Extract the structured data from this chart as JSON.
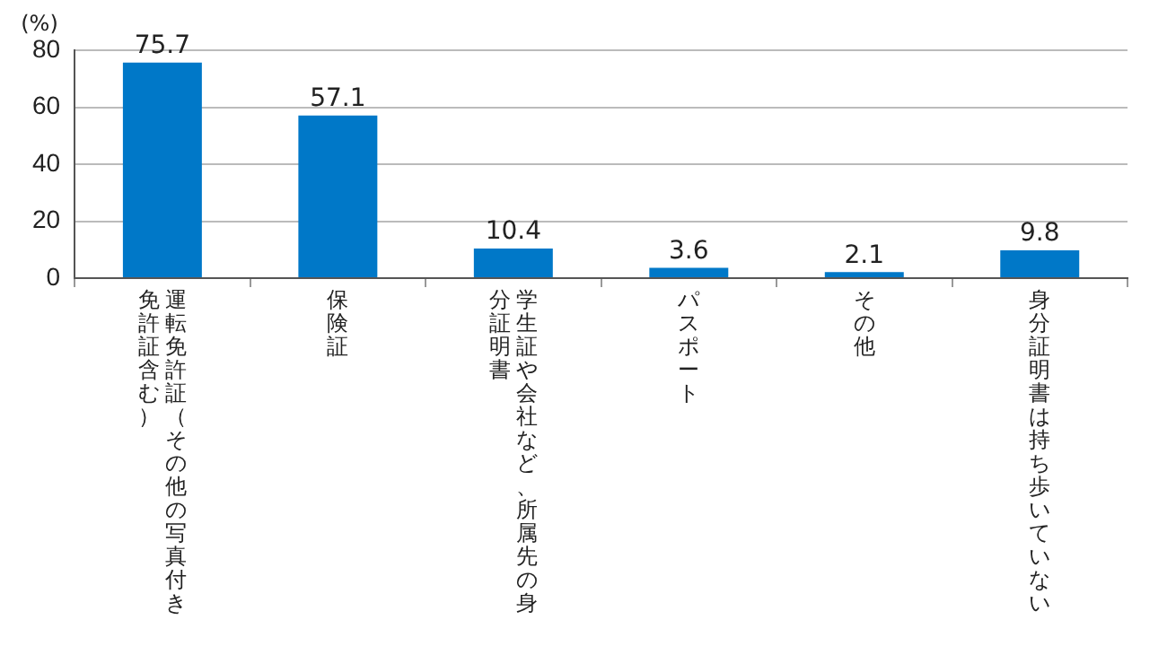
{
  "chart_data": {
    "type": "bar",
    "ylabel": "(%)",
    "categories": [
      "運転免許証（その他の写真付き免許証含む）",
      "保険証",
      "学生証や会社など、所属先の身分証明書",
      "パスポート",
      "その他",
      "身分証明書は持ち歩いていない"
    ],
    "values": [
      75.7,
      57.1,
      10.4,
      3.6,
      2.1,
      9.8
    ],
    "color": "#0078c8",
    "ylim": [
      0,
      80
    ],
    "yticks": [
      0,
      20,
      40,
      60,
      80
    ],
    "grid": "y",
    "data_labels": true,
    "legend": false
  }
}
